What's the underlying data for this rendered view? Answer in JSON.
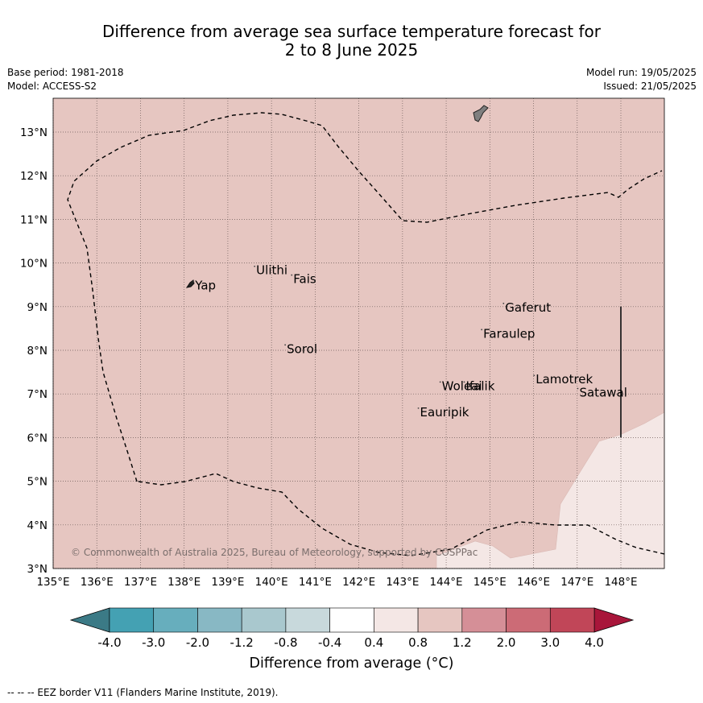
{
  "title_line1": "Difference from average sea surface temperature forecast for",
  "title_line2": "2 to 8 June 2025",
  "base_period": "Base period: 1981-2018",
  "model": "Model: ACCESS-S2",
  "model_run": "Model run: 19/05/2025",
  "issued": "Issued: 21/05/2025",
  "copyright": "© Commonwealth of Australia 2025, Bureau of Meteorology, supported by COSPPac",
  "footer": "-- -- -- EEZ border V11 (Flanders Marine Institute, 2019).",
  "colorbar_title": "Difference from average (°C)",
  "map": {
    "lon_range": [
      135,
      149
    ],
    "lat_range": [
      3,
      13.8
    ],
    "lon_ticks": [
      "135°E",
      "136°E",
      "137°E",
      "138°E",
      "139°E",
      "140°E",
      "141°E",
      "142°E",
      "143°E",
      "144°E",
      "145°E",
      "146°E",
      "147°E",
      "148°E"
    ],
    "lat_ticks": [
      "13°N",
      "12°N",
      "11°N",
      "10°N",
      "9°N",
      "8°N",
      "7°N",
      "6°N",
      "5°N",
      "4°N",
      "3°N"
    ],
    "places": [
      {
        "name": "Yap",
        "lon": 138.25,
        "lat": 9.5
      },
      {
        "name": "Ulithi",
        "lon": 139.65,
        "lat": 9.85
      },
      {
        "name": "Fais",
        "lon": 140.5,
        "lat": 9.65
      },
      {
        "name": "Gaferut",
        "lon": 145.35,
        "lat": 9.0
      },
      {
        "name": "Faraulep",
        "lon": 144.85,
        "lat": 8.4
      },
      {
        "name": "Sorol",
        "lon": 140.35,
        "lat": 8.05
      },
      {
        "name": "Lamotrek",
        "lon": 146.05,
        "lat": 7.35
      },
      {
        "name": "Woleai",
        "lon": 143.9,
        "lat": 7.2
      },
      {
        "name": "Ifalik",
        "lon": 144.45,
        "lat": 7.2
      },
      {
        "name": "Satawal",
        "lon": 147.05,
        "lat": 7.05
      },
      {
        "name": "Eauripik",
        "lon": 143.4,
        "lat": 6.6
      }
    ],
    "fill_main_color": "#e6c6c1",
    "fill_low_color": "#f4e7e5"
  },
  "colorbar": {
    "labels": [
      "-4.0",
      "-3.0",
      "-2.0",
      "-1.2",
      "-0.8",
      "-0.4",
      "0.4",
      "0.8",
      "1.2",
      "2.0",
      "3.0",
      "4.0"
    ],
    "colors": [
      "#44a1b3",
      "#67aebd",
      "#88b8c4",
      "#a9c8ce",
      "#c8d9dc",
      "#ffffff",
      "#f4e7e5",
      "#e6c6c1",
      "#d58f97",
      "#cc6b76",
      "#c14658"
    ],
    "under_color": "#3b7a86",
    "over_color": "#a8163a"
  }
}
